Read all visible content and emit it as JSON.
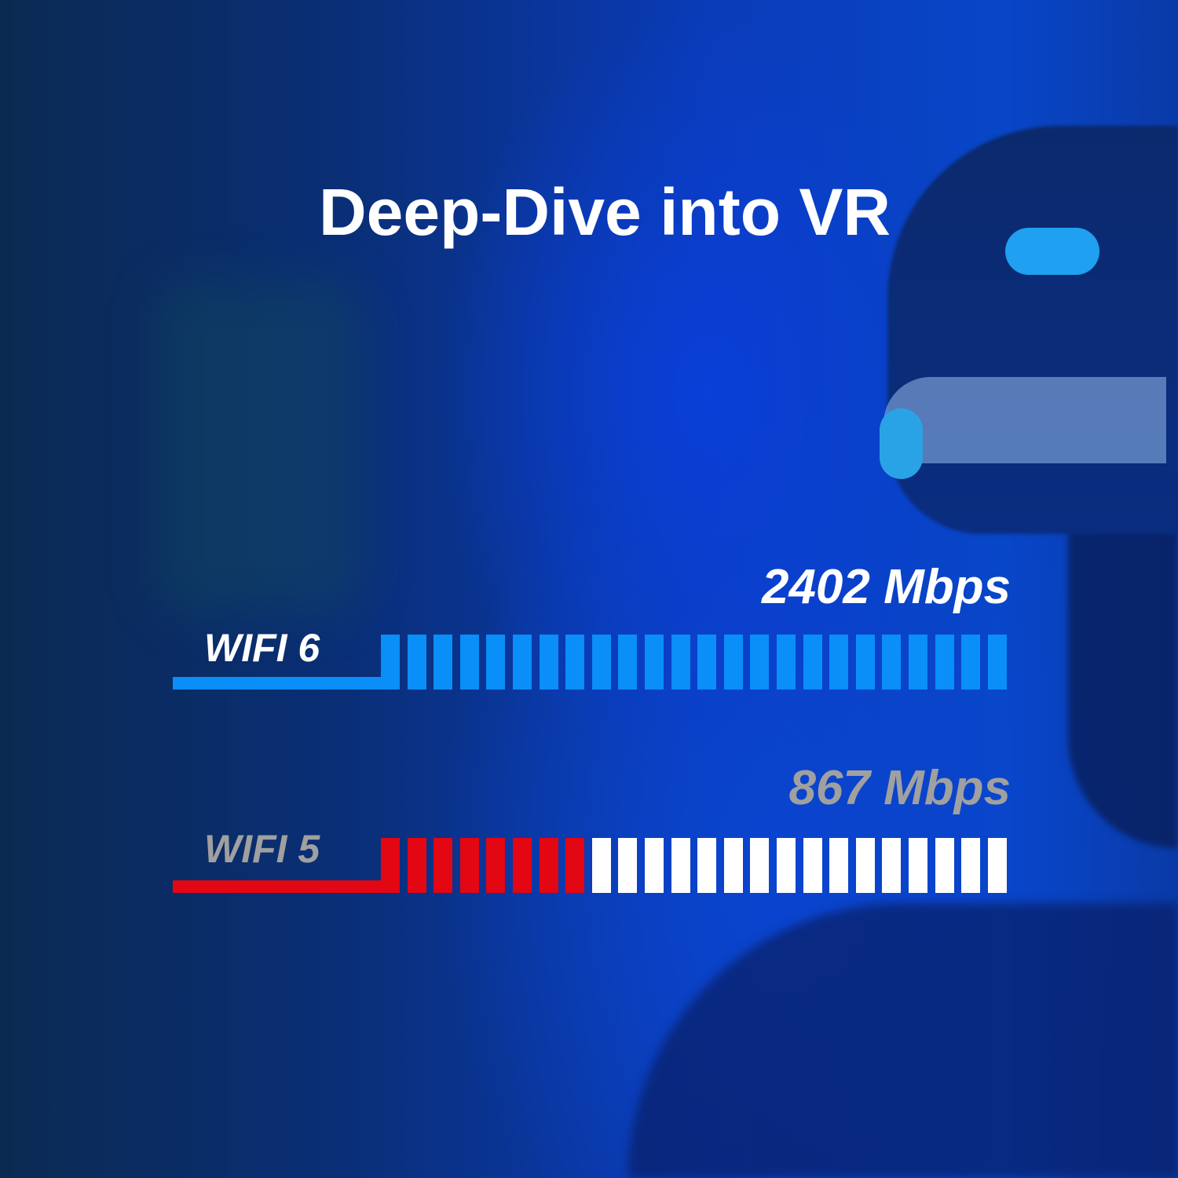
{
  "title": "Deep-Dive into VR",
  "colors": {
    "wifi6": "#0a8ef8",
    "wifi5_filled": "#e30613",
    "wifi5_empty": "#ffffff",
    "wifi5_text": "#a0a0a0"
  },
  "rows": [
    {
      "label": "WIFI 6",
      "speed": "2402 Mbps",
      "segments_total": 24,
      "segments_filled": 24
    },
    {
      "label": "WIFI 5",
      "speed": "867 Mbps",
      "segments_total": 24,
      "segments_filled": 8
    }
  ]
}
